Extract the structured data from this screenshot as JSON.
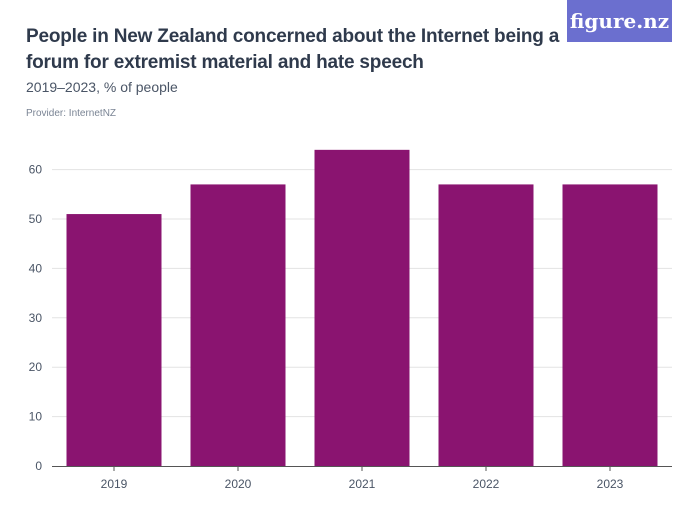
{
  "header": {
    "title": "People in New Zealand concerned about the Internet being a forum for extremist material and hate speech",
    "subtitle": "2019–2023, % of people",
    "provider": "Provider: InternetNZ",
    "logo_text": "figure.nz"
  },
  "colors": {
    "bar": "#8a1470",
    "grid": "#e3e3e3",
    "axis": "#555555",
    "logo_bg": "#6b6fcf"
  },
  "chart_data": {
    "type": "bar",
    "title": "People in New Zealand concerned about the Internet being a forum for extremist material and hate speech",
    "subtitle": "2019–2023, % of people",
    "categories": [
      "2019",
      "2020",
      "2021",
      "2022",
      "2023"
    ],
    "values": [
      51,
      57,
      64,
      57,
      57
    ],
    "xlabel": "",
    "ylabel": "",
    "ylim": [
      0,
      65
    ],
    "yticks": [
      0,
      10,
      20,
      30,
      40,
      50,
      60
    ],
    "grid": true,
    "legend": "none"
  }
}
